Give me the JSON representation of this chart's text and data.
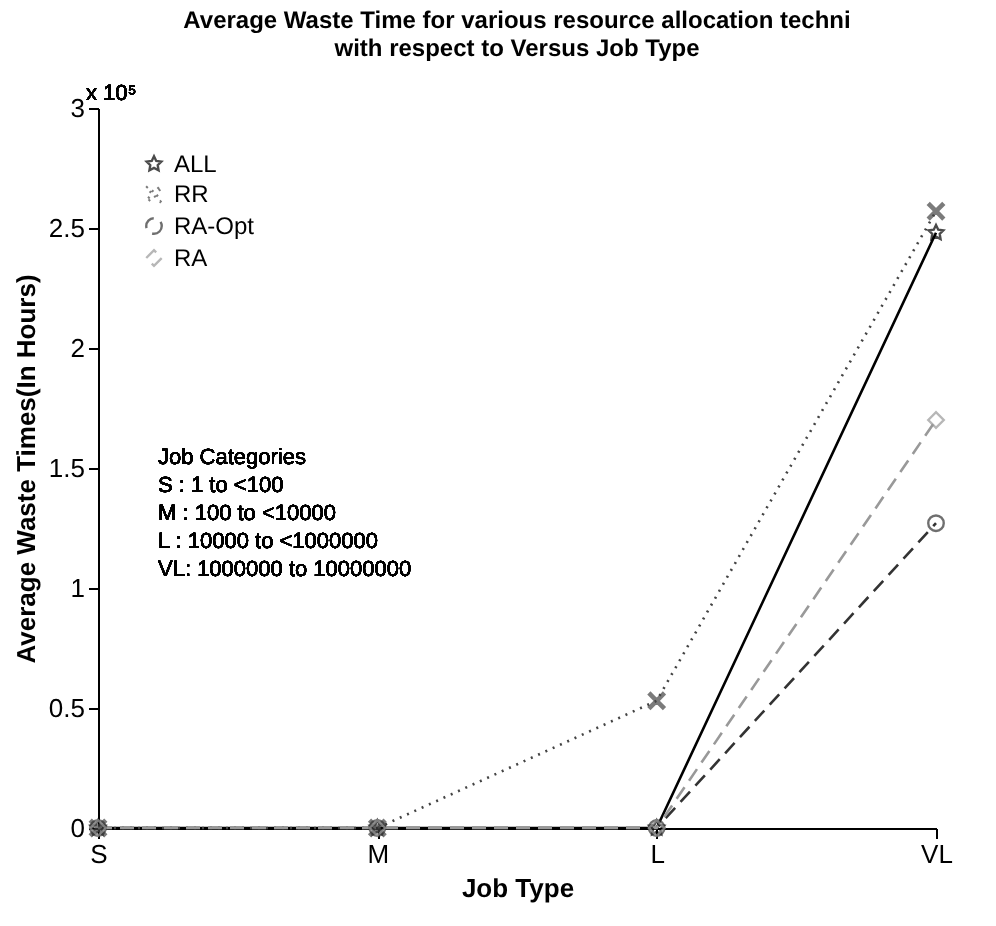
{
  "chart_data": {
    "type": "line",
    "title": "Average Waste Time for various resource allocation techni\nwith respect to Versus Job Type",
    "xlabel": "Job Type",
    "ylabel": "Average Waste Times(In Hours)",
    "categories": [
      "S",
      "M",
      "L",
      "VL"
    ],
    "series": [
      {
        "name": "ALL",
        "color": "#000000",
        "marker": "star",
        "line_style": "solid",
        "values": [
          0,
          0,
          0,
          2.48
        ]
      },
      {
        "name": "RR",
        "color": "#444444",
        "marker": "cross",
        "line_style": "dotted",
        "values": [
          0,
          0,
          0.53,
          2.57
        ]
      },
      {
        "name": "RA-Opt",
        "color": "#333333",
        "marker": "circle",
        "line_style": "dashed",
        "values": [
          0,
          0,
          0,
          1.27
        ]
      },
      {
        "name": "RA",
        "color": "#999999",
        "marker": "diamond",
        "line_style": "dashed",
        "values": [
          0,
          0,
          0,
          1.7
        ]
      }
    ],
    "ylim": [
      0,
      3
    ],
    "yticks": [
      0,
      0.5,
      1,
      1.5,
      2,
      2.5,
      3
    ],
    "grid": false,
    "legend": "top left",
    "annotations": [
      "x 10⁵",
      "Job Categories",
      "S : 1 to <100",
      "M : 100 to <10000",
      "L : 10000 to <1000000",
      "VL: 1000000 to 10000000"
    ]
  }
}
